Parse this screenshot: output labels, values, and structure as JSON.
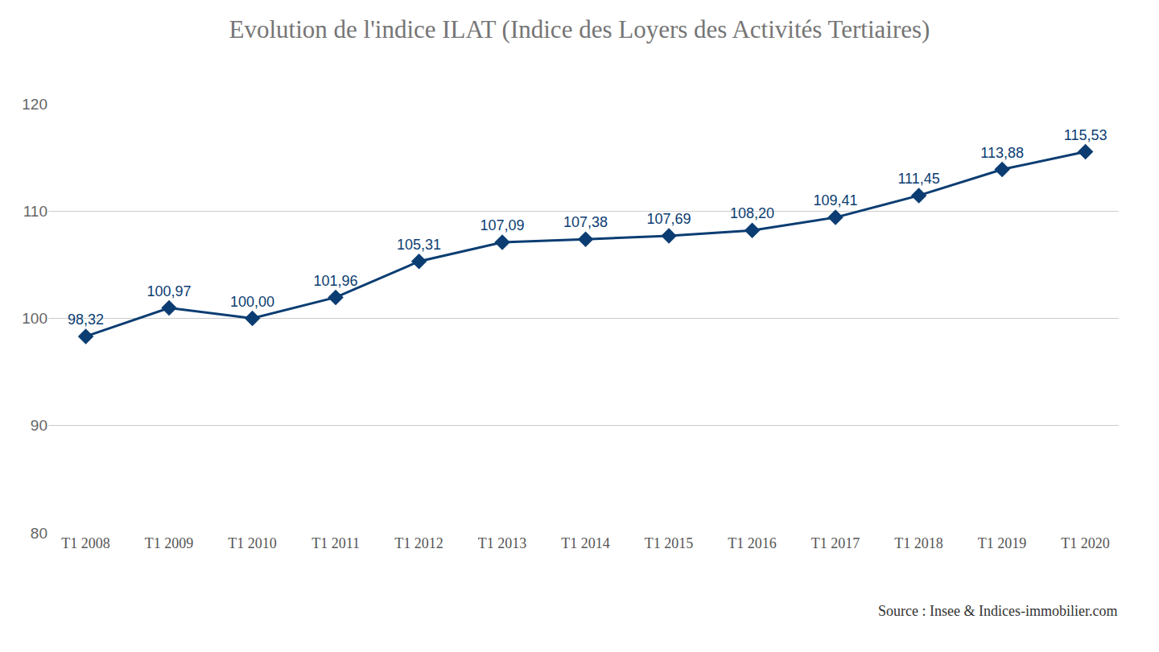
{
  "chart_data": {
    "type": "line",
    "title": "Evolution de l'indice ILAT (Indice des Loyers des Activités Tertiaires)",
    "categories": [
      "T1 2008",
      "T1 2009",
      "T1 2010",
      "T1 2011",
      "T1 2012",
      "T1 2013",
      "T1 2014",
      "T1 2015",
      "T1 2016",
      "T1 2017",
      "T1 2018",
      "T1 2019",
      "T1 2020"
    ],
    "values": [
      98.32,
      100.97,
      100.0,
      101.96,
      105.31,
      107.09,
      107.38,
      107.69,
      108.2,
      109.41,
      111.45,
      113.88,
      115.53
    ],
    "value_labels": [
      "98,32",
      "100,97",
      "100,00",
      "101,96",
      "105,31",
      "107,09",
      "107,38",
      "107,69",
      "108,20",
      "109,41",
      "111,45",
      "113,88",
      "115,53"
    ],
    "data_labels": true,
    "color": "#0b3d72",
    "marker": "diamond",
    "line_style": "solid",
    "ylim": [
      80,
      120
    ],
    "yticks": [
      80,
      90,
      100,
      110,
      120
    ],
    "grid": true,
    "annotations": [
      "Source : Insee & Indices-immobilier.com"
    ]
  }
}
